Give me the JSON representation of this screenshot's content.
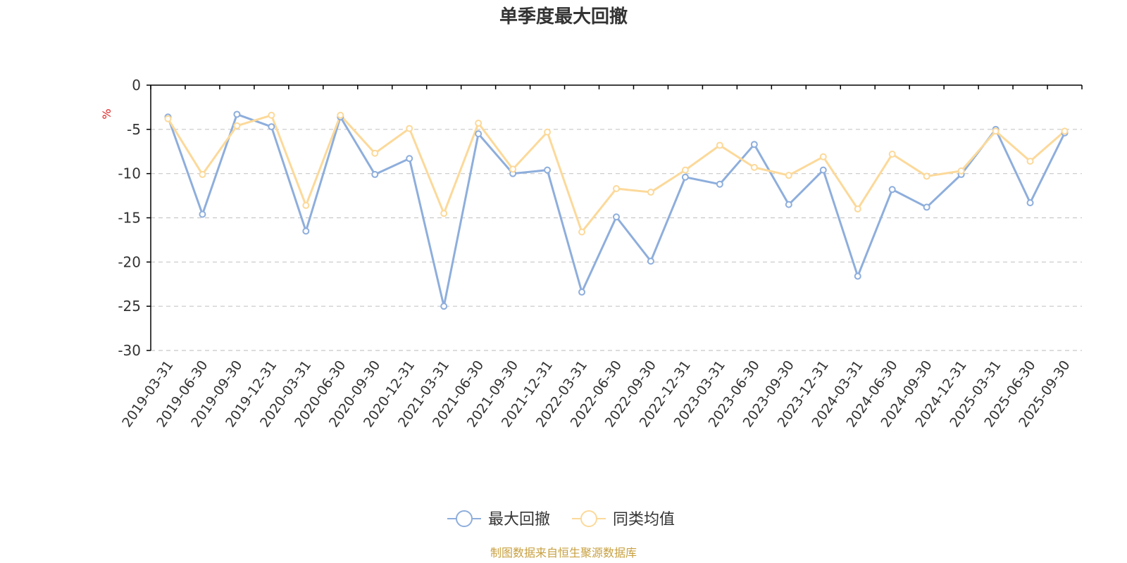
{
  "chart_data": {
    "type": "line",
    "title": "单季度最大回撤",
    "ylabel": "%",
    "ylim": [
      -30,
      0
    ],
    "yticks": [
      0,
      -5,
      -10,
      -15,
      -20,
      -25,
      -30
    ],
    "grid": true,
    "legend_position": "bottom",
    "categories": [
      "2019-03-31",
      "2019-06-30",
      "2019-09-30",
      "2019-12-31",
      "2020-03-31",
      "2020-06-30",
      "2020-09-30",
      "2020-12-31",
      "2021-03-31",
      "2021-06-30",
      "2021-09-30",
      "2021-12-31",
      "2022-03-31",
      "2022-06-30",
      "2022-09-30",
      "2022-12-31",
      "2023-03-31",
      "2023-06-30",
      "2023-09-30",
      "2023-12-31",
      "2024-03-31",
      "2024-06-30",
      "2024-09-30",
      "2024-12-31",
      "2025-03-31",
      "2025-06-30",
      "2025-09-30"
    ],
    "series": [
      {
        "name": "最大回撤",
        "color": "#8eaedc",
        "values": [
          -3.6,
          -14.6,
          -3.3,
          -4.7,
          -16.5,
          -3.6,
          -10.1,
          -8.3,
          -25.0,
          -5.5,
          -10.0,
          -9.6,
          -23.4,
          -14.9,
          -19.9,
          -10.4,
          -11.2,
          -6.7,
          -13.5,
          -9.6,
          -21.6,
          -11.8,
          -13.8,
          -10.1,
          -5.0,
          -13.3,
          -5.4
        ]
      },
      {
        "name": "同类均值",
        "color": "#fcd99a",
        "values": [
          -3.8,
          -10.1,
          -4.6,
          -3.4,
          -13.6,
          -3.4,
          -7.7,
          -4.9,
          -14.5,
          -4.3,
          -9.5,
          -5.3,
          -16.6,
          -11.7,
          -12.1,
          -9.6,
          -6.8,
          -9.3,
          -10.2,
          -8.1,
          -14.0,
          -7.8,
          -10.3,
          -9.7,
          -5.2,
          -8.6,
          -5.2
        ]
      }
    ]
  },
  "source_text": "制图数据来自恒生聚源数据库"
}
